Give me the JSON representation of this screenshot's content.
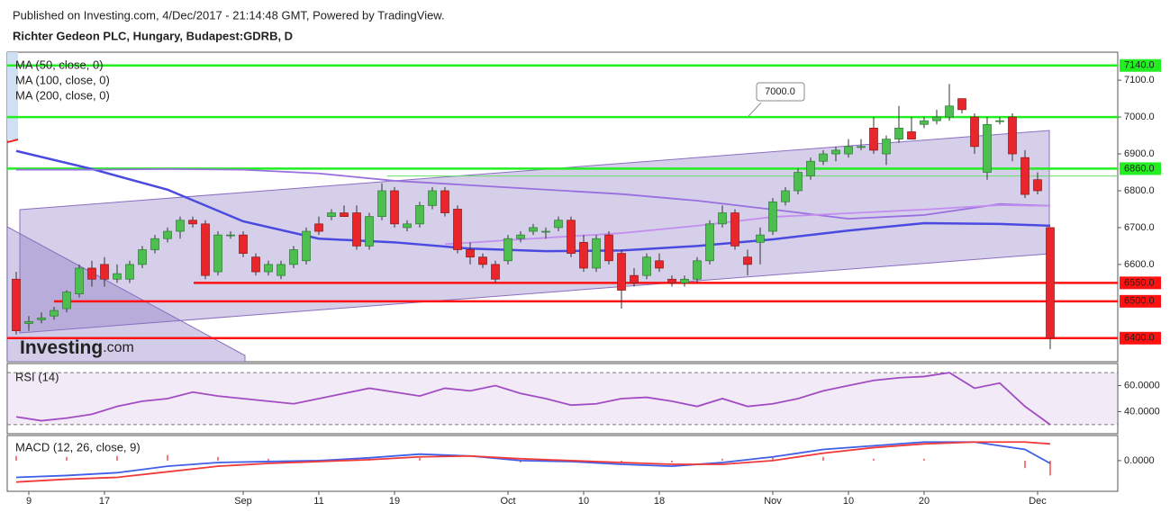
{
  "chart_data": [
    {
      "type": "candlestick",
      "subtitle": "Published on Investing.com, 4/Dec/2017 - 21:14:48 GMT, Powered by TradingView.",
      "title": "Richter Gedeon PLC, Hungary, Budapest:GDRB, D",
      "watermark": [
        "Investing",
        ".com"
      ],
      "categories": [
        null,
        "9",
        null,
        null,
        null,
        null,
        null,
        "17",
        null,
        null,
        null,
        null,
        null,
        null,
        null,
        null,
        null,
        null,
        "Sep",
        null,
        null,
        null,
        null,
        null,
        "11",
        null,
        null,
        null,
        null,
        null,
        "19",
        null,
        null,
        null,
        null,
        null,
        null,
        null,
        null,
        "Oct",
        null,
        null,
        null,
        null,
        null,
        "10",
        null,
        null,
        null,
        null,
        null,
        "18",
        null,
        null,
        null,
        null,
        null,
        null,
        null,
        null,
        "Nov",
        null,
        null,
        null,
        null,
        null,
        "10",
        null,
        null,
        null,
        null,
        null,
        "20",
        null,
        null,
        null,
        null,
        null,
        null,
        null,
        null,
        "Dec",
        null
      ],
      "open": [
        6560,
        6440,
        6450,
        6460,
        6480,
        6520,
        6590,
        6600,
        6560,
        6560,
        6600,
        6640,
        6670,
        6690,
        6720,
        6710,
        6580,
        6680,
        6680,
        6620,
        6580,
        6570,
        6600,
        6610,
        6710,
        6730,
        6740,
        6740,
        6650,
        6730,
        6800,
        6700,
        6710,
        6760,
        6800,
        6750,
        6640,
        6620,
        6600,
        6610,
        6670,
        6690,
        6690,
        6700,
        6720,
        6660,
        6590,
        6680,
        6630,
        6570,
        6570,
        6610,
        6560,
        6550,
        6560,
        6610,
        6710,
        6740,
        6620,
        6660,
        6690,
        6770,
        6800,
        6840,
        6880,
        6900,
        6900,
        6920,
        6970,
        6900,
        6940,
        6960,
        6980,
        6990,
        7000,
        7050,
        7000,
        6850,
        6990,
        7000,
        6890,
        6830,
        6700
      ],
      "high": [
        6580,
        6460,
        6470,
        6485,
        6530,
        6600,
        6610,
        6620,
        6600,
        6610,
        6650,
        6680,
        6700,
        6730,
        6730,
        6720,
        6690,
        6690,
        6690,
        6630,
        6610,
        6610,
        6650,
        6700,
        6730,
        6750,
        6760,
        6760,
        6740,
        6820,
        6810,
        6720,
        6770,
        6810,
        6810,
        6760,
        6660,
        6630,
        6610,
        6680,
        6690,
        6710,
        6700,
        6730,
        6730,
        6680,
        6680,
        6690,
        6640,
        6590,
        6630,
        6630,
        6570,
        6570,
        6620,
        6720,
        6760,
        6750,
        6640,
        6700,
        6780,
        6810,
        6860,
        6890,
        6910,
        6920,
        6940,
        6940,
        7000,
        6950,
        7030,
        7000,
        7000,
        7020,
        7090,
        7050,
        7010,
        7000,
        7000,
        7010,
        6910,
        6850,
        6700
      ],
      "low": [
        6410,
        6420,
        6440,
        6450,
        6470,
        6510,
        6540,
        6540,
        6550,
        6550,
        6590,
        6630,
        6660,
        6670,
        6700,
        6560,
        6570,
        6670,
        6620,
        6570,
        6570,
        6560,
        6590,
        6600,
        6680,
        6720,
        6730,
        6640,
        6640,
        6720,
        6700,
        6690,
        6700,
        6750,
        6730,
        6630,
        6600,
        6590,
        6550,
        6600,
        6660,
        6680,
        6670,
        6690,
        6620,
        6580,
        6580,
        6600,
        6480,
        6540,
        6560,
        6580,
        6540,
        6540,
        6550,
        6600,
        6700,
        6640,
        6570,
        6600,
        6680,
        6760,
        6790,
        6830,
        6870,
        6880,
        6890,
        6910,
        6900,
        6870,
        6930,
        6940,
        6970,
        6980,
        6990,
        7010,
        6900,
        6830,
        6980,
        6880,
        6780,
        6790,
        6370
      ],
      "close": [
        6420,
        6445,
        6455,
        6475,
        6525,
        6590,
        6560,
        6560,
        6575,
        6600,
        6640,
        6670,
        6690,
        6720,
        6710,
        6570,
        6680,
        6680,
        6630,
        6580,
        6600,
        6600,
        6640,
        6690,
        6690,
        6740,
        6730,
        6650,
        6730,
        6800,
        6710,
        6710,
        6760,
        6800,
        6740,
        6640,
        6620,
        6600,
        6560,
        6670,
        6680,
        6700,
        6690,
        6720,
        6630,
        6590,
        6670,
        6610,
        6530,
        6550,
        6620,
        6590,
        6550,
        6560,
        6610,
        6710,
        6740,
        6650,
        6600,
        6680,
        6770,
        6800,
        6850,
        6880,
        6900,
        6910,
        6920,
        6920,
        6910,
        6940,
        6970,
        6940,
        6990,
        7000,
        7030,
        7020,
        6920,
        6980,
        6990,
        6900,
        6790,
        6800,
        6400
      ],
      "up_color": "#4cbf50",
      "down_color": "#e8262b",
      "series": [
        {
          "name": "MA (50, close, 0)",
          "color": "#4a4ae0",
          "x": [
            0,
            6,
            12,
            18,
            24,
            30,
            36,
            42,
            48,
            54,
            60,
            66,
            72,
            78,
            82
          ],
          "values": [
            6908,
            6859,
            6803,
            6717,
            6670,
            6660,
            6643,
            6636,
            6638,
            6650,
            6668,
            6692,
            6712,
            6710,
            6705
          ]
        },
        {
          "name": "MA (100, close, 0)",
          "color": "#9a6fe0",
          "x": [
            0,
            6,
            12,
            18,
            24,
            30,
            36,
            42,
            48,
            54,
            60,
            66,
            72,
            78,
            82
          ],
          "values": [
            6857,
            6857,
            6859,
            6857,
            6847,
            6827,
            6815,
            6803,
            6791,
            6773,
            6749,
            6724,
            6734,
            6764,
            6759
          ]
        },
        {
          "name": "MA (200, close, 0)",
          "color": "#c48ef0",
          "x": [
            34,
            40,
            48,
            54,
            60,
            66,
            72,
            78,
            82
          ],
          "values": [
            6655,
            6668,
            6685,
            6705,
            6729,
            6739,
            6749,
            6761,
            6759
          ]
        }
      ],
      "levels": [
        {
          "value": 7140,
          "label": "7140.0",
          "color": "#22ee22"
        },
        {
          "value": 7000,
          "color": "#22ee22",
          "callout": "7000.0"
        },
        {
          "value": 6860,
          "label": "6860.0",
          "color": "#22ee22"
        },
        {
          "value": 6840,
          "color": "#66dd66"
        },
        {
          "value": 6550,
          "label": "6550.0",
          "color": "#ff1111"
        },
        {
          "value": 6500,
          "label": "6500.0",
          "color": "#ff1111"
        },
        {
          "value": 6400,
          "label": "6400.0",
          "color": "#ff1111"
        }
      ],
      "ylim": [
        6336,
        7176
      ],
      "yticks": [
        {
          "value": 6600,
          "label": "6600.0"
        },
        {
          "value": 6700,
          "label": "6700.0"
        },
        {
          "value": 6800,
          "label": "6800.0"
        },
        {
          "value": 6900,
          "label": "6900.0"
        },
        {
          "value": 7000,
          "label": "7000.0"
        },
        {
          "value": 7100,
          "label": "7100.0"
        }
      ]
    },
    {
      "type": "line",
      "title": "RSI (14)",
      "series": [
        {
          "color": "#a24cc4",
          "x": [
            0,
            2,
            4,
            6,
            8,
            10,
            12,
            14,
            16,
            18,
            20,
            22,
            24,
            26,
            28,
            30,
            32,
            34,
            36,
            38,
            40,
            42,
            44,
            46,
            48,
            50,
            52,
            54,
            56,
            58,
            60,
            62,
            64,
            66,
            68,
            70,
            72,
            74,
            76,
            78,
            80,
            82
          ],
          "values": [
            36,
            33,
            35,
            38,
            44,
            48,
            50,
            55,
            52,
            50,
            48,
            46,
            50,
            54,
            58,
            55,
            52,
            58,
            56,
            60,
            54,
            50,
            45,
            46,
            50,
            51,
            48,
            44,
            50,
            44,
            46,
            50,
            56,
            60,
            64,
            66,
            67,
            70,
            58,
            62,
            44,
            30
          ]
        }
      ],
      "band": [
        30,
        70
      ],
      "ylim": [
        23,
        77
      ],
      "yticks": [
        {
          "value": 40,
          "label": "40.0000"
        },
        {
          "value": 60,
          "label": "60.0000"
        }
      ]
    },
    {
      "type": "line",
      "title": "MACD (12, 26, close, 9)",
      "series": [
        {
          "color": "#3f5fe8",
          "x": [
            0,
            4,
            8,
            12,
            16,
            20,
            24,
            28,
            32,
            36,
            40,
            44,
            48,
            52,
            56,
            60,
            64,
            68,
            72,
            76,
            80,
            82
          ],
          "values": [
            -36,
            -32,
            -26,
            -12,
            -4,
            -2,
            0,
            6,
            14,
            10,
            0,
            -2,
            -8,
            -12,
            -4,
            8,
            24,
            32,
            40,
            40,
            24,
            -6
          ]
        },
        {
          "color": "#f03a3a",
          "x": [
            0,
            4,
            8,
            12,
            16,
            20,
            24,
            28,
            32,
            36,
            40,
            44,
            48,
            52,
            56,
            60,
            64,
            68,
            72,
            76,
            80,
            82
          ],
          "values": [
            -46,
            -40,
            -36,
            -24,
            -12,
            -6,
            -2,
            2,
            8,
            10,
            4,
            0,
            -4,
            -8,
            -8,
            0,
            16,
            28,
            36,
            40,
            40,
            36
          ]
        }
      ],
      "histogram": {
        "color": "#f05050",
        "x": [
          0,
          4,
          8,
          12,
          16,
          20,
          24,
          28,
          32,
          36,
          40,
          44,
          48,
          52,
          56,
          60,
          64,
          68,
          72,
          76,
          80,
          82
        ],
        "values": [
          10,
          8,
          10,
          12,
          8,
          4,
          2,
          4,
          6,
          0,
          -4,
          -2,
          -4,
          -4,
          4,
          8,
          8,
          4,
          4,
          0,
          -16,
          -32
        ]
      },
      "ylim": [
        -66,
        54
      ],
      "yticks": [
        {
          "value": 0,
          "label": "0.0000"
        }
      ]
    }
  ]
}
